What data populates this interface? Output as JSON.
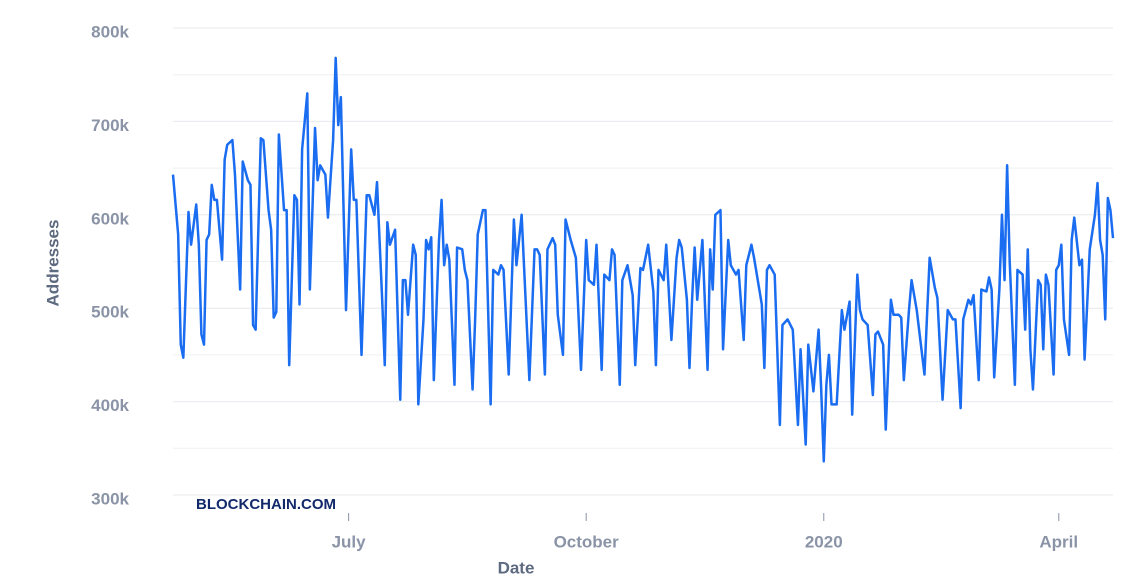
{
  "chart_data": {
    "type": "line",
    "x": [
      0,
      2,
      3,
      4,
      6,
      7,
      9,
      10,
      11,
      12,
      13,
      14,
      15,
      16,
      17,
      19,
      20,
      21,
      23,
      24,
      26,
      27,
      29,
      30,
      31,
      32,
      34,
      35,
      37,
      38,
      39,
      40,
      41,
      43,
      44,
      45,
      47,
      48,
      49,
      50,
      52,
      53,
      55,
      56,
      57,
      59,
      60,
      62,
      63,
      64,
      65,
      67,
      69,
      70,
      71,
      73,
      75,
      76,
      78,
      79,
      81,
      82,
      83,
      84,
      86,
      88,
      89,
      90,
      91,
      93,
      94,
      95,
      97,
      98,
      99,
      100,
      101,
      103,
      104,
      105,
      106,
      107,
      109,
      110,
      112,
      113,
      114,
      116,
      117,
      118,
      120,
      121,
      123,
      124,
      126,
      127,
      128,
      130,
      132,
      133,
      135,
      136,
      138,
      140,
      141,
      142,
      144,
      145,
      147,
      148,
      149,
      151,
      152,
      154,
      156,
      158,
      160,
      161,
      163,
      164,
      166,
      167,
      169,
      170,
      171,
      173,
      174,
      176,
      178,
      179,
      181,
      182,
      184,
      186,
      187,
      188,
      190,
      191,
      193,
      195,
      196,
      197,
      199,
      200,
      201,
      202,
      203,
      205,
      207,
      208,
      209,
      210,
      212,
      213,
      215,
      216,
      218,
      219,
      221,
      222,
      224,
      225,
      228,
      229,
      230,
      231,
      233,
      235,
      236,
      238,
      240,
      242,
      243,
      245,
      246,
      248,
      250,
      251,
      252,
      253,
      254,
      255,
      257,
      259,
      260,
      262,
      263,
      265,
      266,
      267,
      269,
      271,
      272,
      273,
      275,
      276,
      278,
      279,
      281,
      282,
      283,
      285,
      286,
      288,
      289,
      291,
      292,
      293,
      295,
      296,
      298,
      300,
      301,
      302,
      303,
      305,
      306,
      308,
      309,
      310,
      312,
      313,
      315,
      316,
      317,
      318,
      320,
      321,
      322,
      323,
      324,
      326,
      327,
      329,
      330,
      331,
      332,
      333,
      335,
      336,
      337,
      338,
      339,
      341,
      342,
      343,
      344,
      345,
      347,
      348,
      349,
      351,
      352,
      353,
      355,
      357,
      358,
      359,
      360,
      361,
      362,
      363,
      364
    ],
    "values": [
      643,
      579,
      461,
      447,
      603,
      568,
      611,
      568,
      472,
      461,
      573,
      579,
      632,
      616,
      616,
      552,
      659,
      675,
      680,
      643,
      520,
      657,
      637,
      632,
      482,
      477,
      682,
      680,
      605,
      584,
      490,
      496,
      686,
      605,
      605,
      439,
      621,
      616,
      504,
      670,
      730,
      520,
      693,
      637,
      653,
      643,
      597,
      680,
      768,
      696,
      726,
      498,
      670,
      616,
      616,
      450,
      621,
      621,
      600,
      635,
      509,
      439,
      592,
      568,
      584,
      402,
      530,
      530,
      493,
      568,
      557,
      397,
      488,
      573,
      563,
      576,
      423,
      573,
      616,
      546,
      568,
      552,
      418,
      565,
      563,
      541,
      530,
      413,
      488,
      579,
      605,
      605,
      397,
      541,
      536,
      546,
      541,
      429,
      595,
      546,
      600,
      541,
      423,
      563,
      563,
      557,
      429,
      563,
      575,
      568,
      493,
      450,
      595,
      573,
      554,
      434,
      573,
      530,
      525,
      568,
      434,
      536,
      530,
      563,
      557,
      418,
      530,
      546,
      514,
      439,
      543,
      541,
      568,
      518,
      439,
      541,
      530,
      568,
      466,
      554,
      573,
      565,
      509,
      436,
      509,
      565,
      509,
      573,
      434,
      563,
      520,
      600,
      605,
      456,
      573,
      546,
      536,
      541,
      466,
      546,
      568,
      554,
      504,
      436,
      541,
      546,
      536,
      375,
      482,
      488,
      477,
      375,
      456,
      354,
      461,
      411,
      477,
      413,
      336,
      418,
      450,
      397,
      397,
      498,
      477,
      507,
      386,
      536,
      498,
      488,
      482,
      407,
      472,
      475,
      461,
      370,
      509,
      493,
      493,
      490,
      423,
      498,
      530,
      498,
      475,
      429,
      493,
      554,
      522,
      511,
      402,
      498,
      493,
      488,
      488,
      393,
      488,
      509,
      504,
      514,
      423,
      520,
      518,
      533,
      520,
      426,
      520,
      600,
      530,
      653,
      550,
      418,
      541,
      536,
      477,
      563,
      456,
      413,
      530,
      525,
      456,
      536,
      525,
      429,
      541,
      546,
      568,
      488,
      450,
      573,
      597,
      546,
      552,
      445,
      563,
      600,
      634,
      573,
      557,
      488,
      618,
      605,
      575
    ],
    "color": "#1a6cf0",
    "xlim": [
      0,
      364
    ],
    "xticks": [
      {
        "value": 68,
        "label": "July"
      },
      {
        "value": 160,
        "label": "October"
      },
      {
        "value": 252,
        "label": "2020"
      },
      {
        "value": 343,
        "label": "April"
      }
    ],
    "ylim": [
      300,
      800
    ],
    "yticks": [
      {
        "value": 300,
        "label": "300k"
      },
      {
        "value": 400,
        "label": "400k"
      },
      {
        "value": 500,
        "label": "500k"
      },
      {
        "value": 600,
        "label": "600k"
      },
      {
        "value": 700,
        "label": "700k"
      },
      {
        "value": 800,
        "label": "800k"
      }
    ],
    "minor_yticks": [
      350,
      450,
      550,
      650,
      750
    ],
    "grid": true,
    "xlabel": "Date",
    "ylabel": "Addresses",
    "watermark": "BLOCKCHAIN.COM"
  }
}
